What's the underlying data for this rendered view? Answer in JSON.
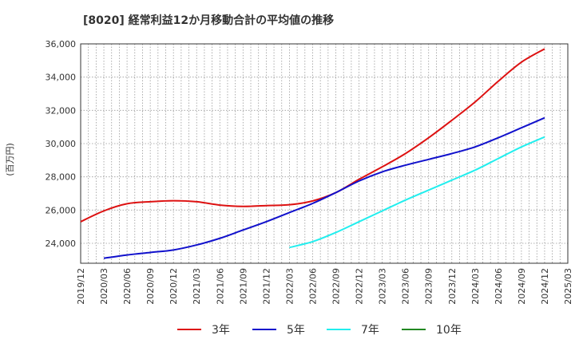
{
  "chart_data": {
    "type": "line",
    "title": "[8020]  経常利益12か月移動合計の平均値の推移",
    "ylabel": "(百万円)",
    "xlabel": "",
    "ylim": [
      22800,
      36000
    ],
    "yticks": [
      24000,
      26000,
      28000,
      30000,
      32000,
      34000,
      36000
    ],
    "ytick_labels": [
      "24,000",
      "26,000",
      "28,000",
      "30,000",
      "32,000",
      "34,000",
      "36,000"
    ],
    "xticks": [
      "2019/12",
      "2020/03",
      "2020/06",
      "2020/09",
      "2020/12",
      "2021/03",
      "2021/06",
      "2021/09",
      "2021/12",
      "2022/03",
      "2022/06",
      "2022/09",
      "2022/12",
      "2023/03",
      "2023/06",
      "2023/09",
      "2023/12",
      "2024/03",
      "2024/06",
      "2024/09",
      "2024/12",
      "2025/03"
    ],
    "grid": true,
    "legend_position": "bottom",
    "series": [
      {
        "name": "3年",
        "color": "#dd1111",
        "points": [
          [
            "2019/12",
            25300
          ],
          [
            "2020/03",
            25950
          ],
          [
            "2020/06",
            26380
          ],
          [
            "2020/09",
            26500
          ],
          [
            "2020/12",
            26560
          ],
          [
            "2021/03",
            26500
          ],
          [
            "2021/06",
            26300
          ],
          [
            "2021/09",
            26220
          ],
          [
            "2021/12",
            26270
          ],
          [
            "2022/03",
            26320
          ],
          [
            "2022/06",
            26550
          ],
          [
            "2022/09",
            27050
          ],
          [
            "2022/12",
            27850
          ],
          [
            "2023/03",
            28600
          ],
          [
            "2023/06",
            29400
          ],
          [
            "2023/09",
            30350
          ],
          [
            "2023/12",
            31400
          ],
          [
            "2024/03",
            32500
          ],
          [
            "2024/06",
            33750
          ],
          [
            "2024/09",
            34900
          ],
          [
            "2024/12",
            35700
          ]
        ]
      },
      {
        "name": "5年",
        "color": "#1111cc",
        "points": [
          [
            "2020/03",
            23100
          ],
          [
            "2020/06",
            23300
          ],
          [
            "2020/09",
            23450
          ],
          [
            "2020/12",
            23600
          ],
          [
            "2021/03",
            23900
          ],
          [
            "2021/06",
            24300
          ],
          [
            "2021/09",
            24800
          ],
          [
            "2021/12",
            25300
          ],
          [
            "2022/03",
            25850
          ],
          [
            "2022/06",
            26400
          ],
          [
            "2022/09",
            27050
          ],
          [
            "2022/12",
            27750
          ],
          [
            "2023/03",
            28300
          ],
          [
            "2023/06",
            28700
          ],
          [
            "2023/09",
            29050
          ],
          [
            "2023/12",
            29400
          ],
          [
            "2024/03",
            29800
          ],
          [
            "2024/06",
            30350
          ],
          [
            "2024/09",
            30950
          ],
          [
            "2024/12",
            31550
          ]
        ]
      },
      {
        "name": "7年",
        "color": "#22eeee",
        "points": [
          [
            "2022/03",
            23750
          ],
          [
            "2022/06",
            24100
          ],
          [
            "2022/09",
            24650
          ],
          [
            "2022/12",
            25300
          ],
          [
            "2023/03",
            25950
          ],
          [
            "2023/06",
            26600
          ],
          [
            "2023/09",
            27200
          ],
          [
            "2023/12",
            27800
          ],
          [
            "2024/03",
            28400
          ],
          [
            "2024/06",
            29100
          ],
          [
            "2024/09",
            29800
          ],
          [
            "2024/12",
            30400
          ]
        ]
      },
      {
        "name": "10年",
        "color": "#228822",
        "points": []
      }
    ]
  }
}
